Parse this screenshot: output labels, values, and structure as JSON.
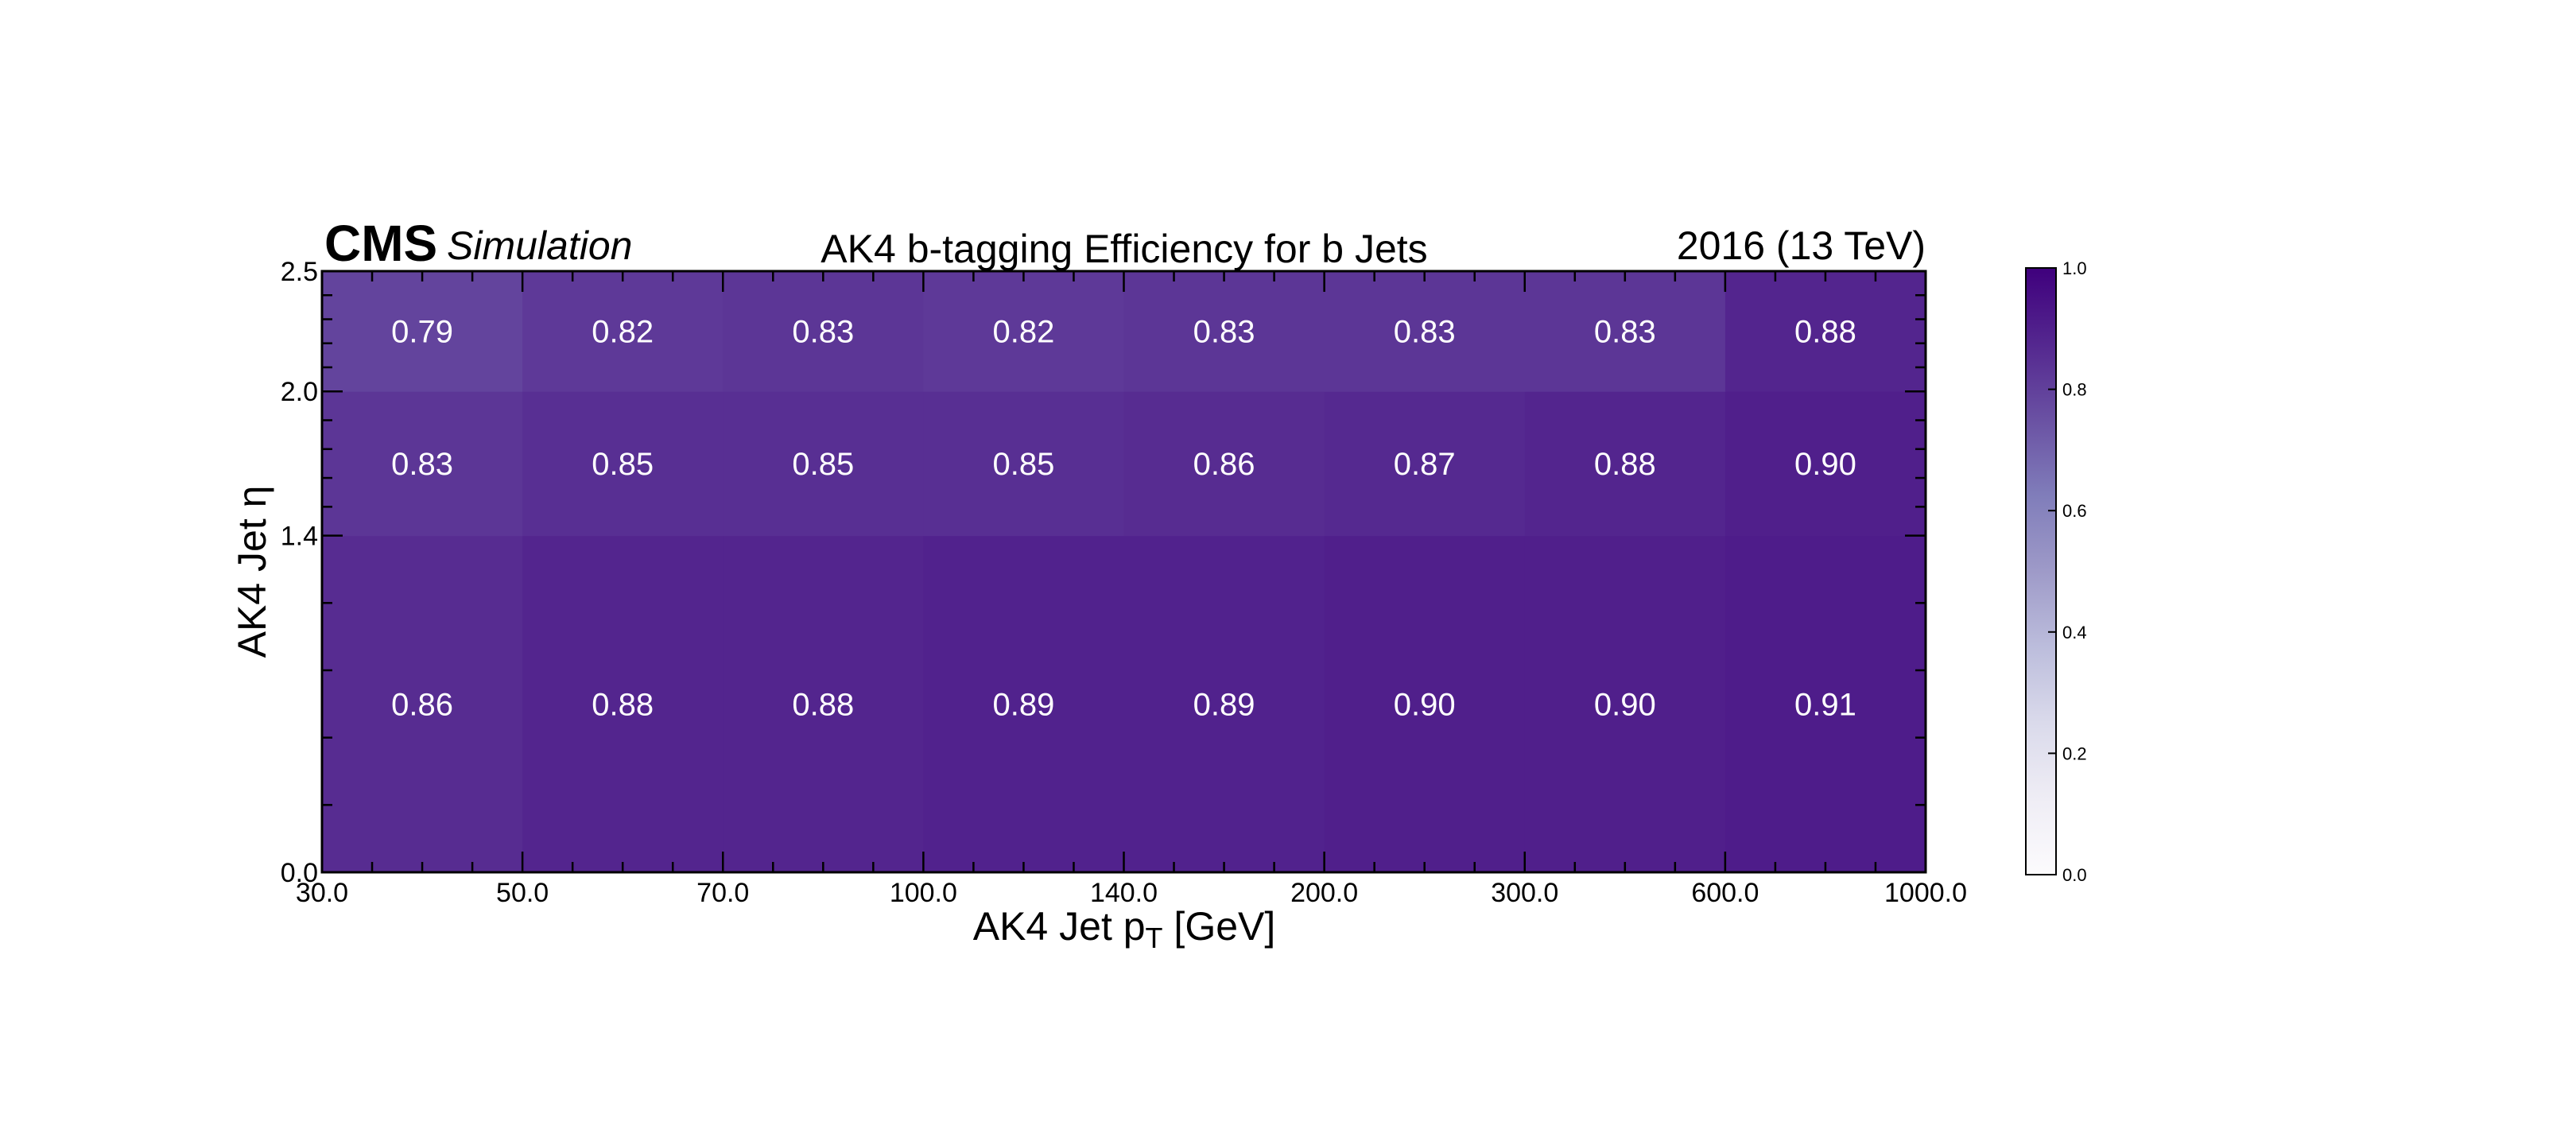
{
  "chart_data": {
    "type": "heatmap",
    "title": "AK4 b-tagging Efficiency for b Jets",
    "experiment_label": "CMS",
    "experiment_sublabel": "Simulation",
    "lumi_label": "2016 (13 TeV)",
    "xlabel_main": "AK4 Jet p",
    "xlabel_sub": "T",
    "xlabel_unit": " [GeV]",
    "ylabel": "AK4 Jet η",
    "x_bin_edges": [
      30.0,
      50.0,
      70.0,
      100.0,
      140.0,
      200.0,
      300.0,
      600.0,
      1000.0
    ],
    "x_tick_labels": [
      "30.0",
      "50.0",
      "70.0",
      "100.0",
      "140.0",
      "200.0",
      "300.0",
      "600.0",
      "1000.0"
    ],
    "y_bin_edges": [
      0.0,
      1.4,
      2.0,
      2.5
    ],
    "y_tick_labels": [
      "0.0",
      "1.4",
      "2.0",
      "2.5"
    ],
    "values": [
      [
        0.86,
        0.88,
        0.88,
        0.89,
        0.89,
        0.9,
        0.9,
        0.91
      ],
      [
        0.83,
        0.85,
        0.85,
        0.85,
        0.86,
        0.87,
        0.88,
        0.9
      ],
      [
        0.79,
        0.82,
        0.83,
        0.82,
        0.83,
        0.83,
        0.83,
        0.88
      ]
    ],
    "cell_labels": [
      [
        "0.86",
        "0.88",
        "0.88",
        "0.89",
        "0.89",
        "0.90",
        "0.90",
        "0.91"
      ],
      [
        "0.83",
        "0.85",
        "0.85",
        "0.85",
        "0.86",
        "0.87",
        "0.88",
        "0.90"
      ],
      [
        "0.79",
        "0.82",
        "0.83",
        "0.82",
        "0.83",
        "0.83",
        "0.83",
        "0.88"
      ]
    ],
    "x_scale": "bin-index (uniform bins)",
    "colorbar": {
      "range": [
        0.0,
        1.0
      ],
      "ticks": [
        0.0,
        0.2,
        0.4,
        0.6,
        0.8,
        1.0
      ],
      "tick_labels": [
        "0.0",
        "0.2",
        "0.4",
        "0.6",
        "0.8",
        "1.0"
      ],
      "colormap": "white to purple",
      "color_low": "#ffffff",
      "color_high": "#3f007d"
    },
    "grid": false,
    "legend": "none"
  }
}
